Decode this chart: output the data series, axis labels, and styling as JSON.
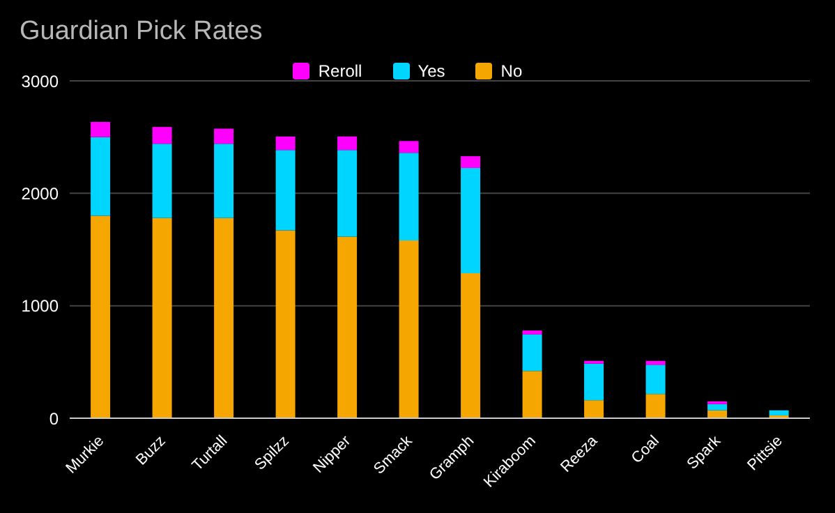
{
  "chart_data": {
    "type": "bar",
    "title": "Guardian Pick Rates",
    "stacked": true,
    "categories": [
      "Murkie",
      "Buzz",
      "Turtall",
      "Spilzz",
      "Nipper",
      "Smack",
      "Gramph",
      "Kiraboom",
      "Reeza",
      "Coal",
      "Spark",
      "Pittsie"
    ],
    "series": [
      {
        "name": "No",
        "color": "#f6a600",
        "values": [
          1800,
          1780,
          1780,
          1670,
          1615,
          1580,
          1290,
          420,
          160,
          215,
          70,
          25
        ]
      },
      {
        "name": "Yes",
        "color": "#00d5ff",
        "values": [
          700,
          660,
          660,
          715,
          770,
          780,
          935,
          325,
          325,
          260,
          55,
          45
        ]
      },
      {
        "name": "Reroll",
        "color": "#ff00ff",
        "values": [
          135,
          150,
          135,
          120,
          120,
          105,
          105,
          35,
          25,
          35,
          25,
          0
        ]
      }
    ],
    "ylim": [
      0,
      3000
    ],
    "yticks": [
      0,
      1000,
      2000,
      3000
    ],
    "grid": "y",
    "legend": "top"
  }
}
